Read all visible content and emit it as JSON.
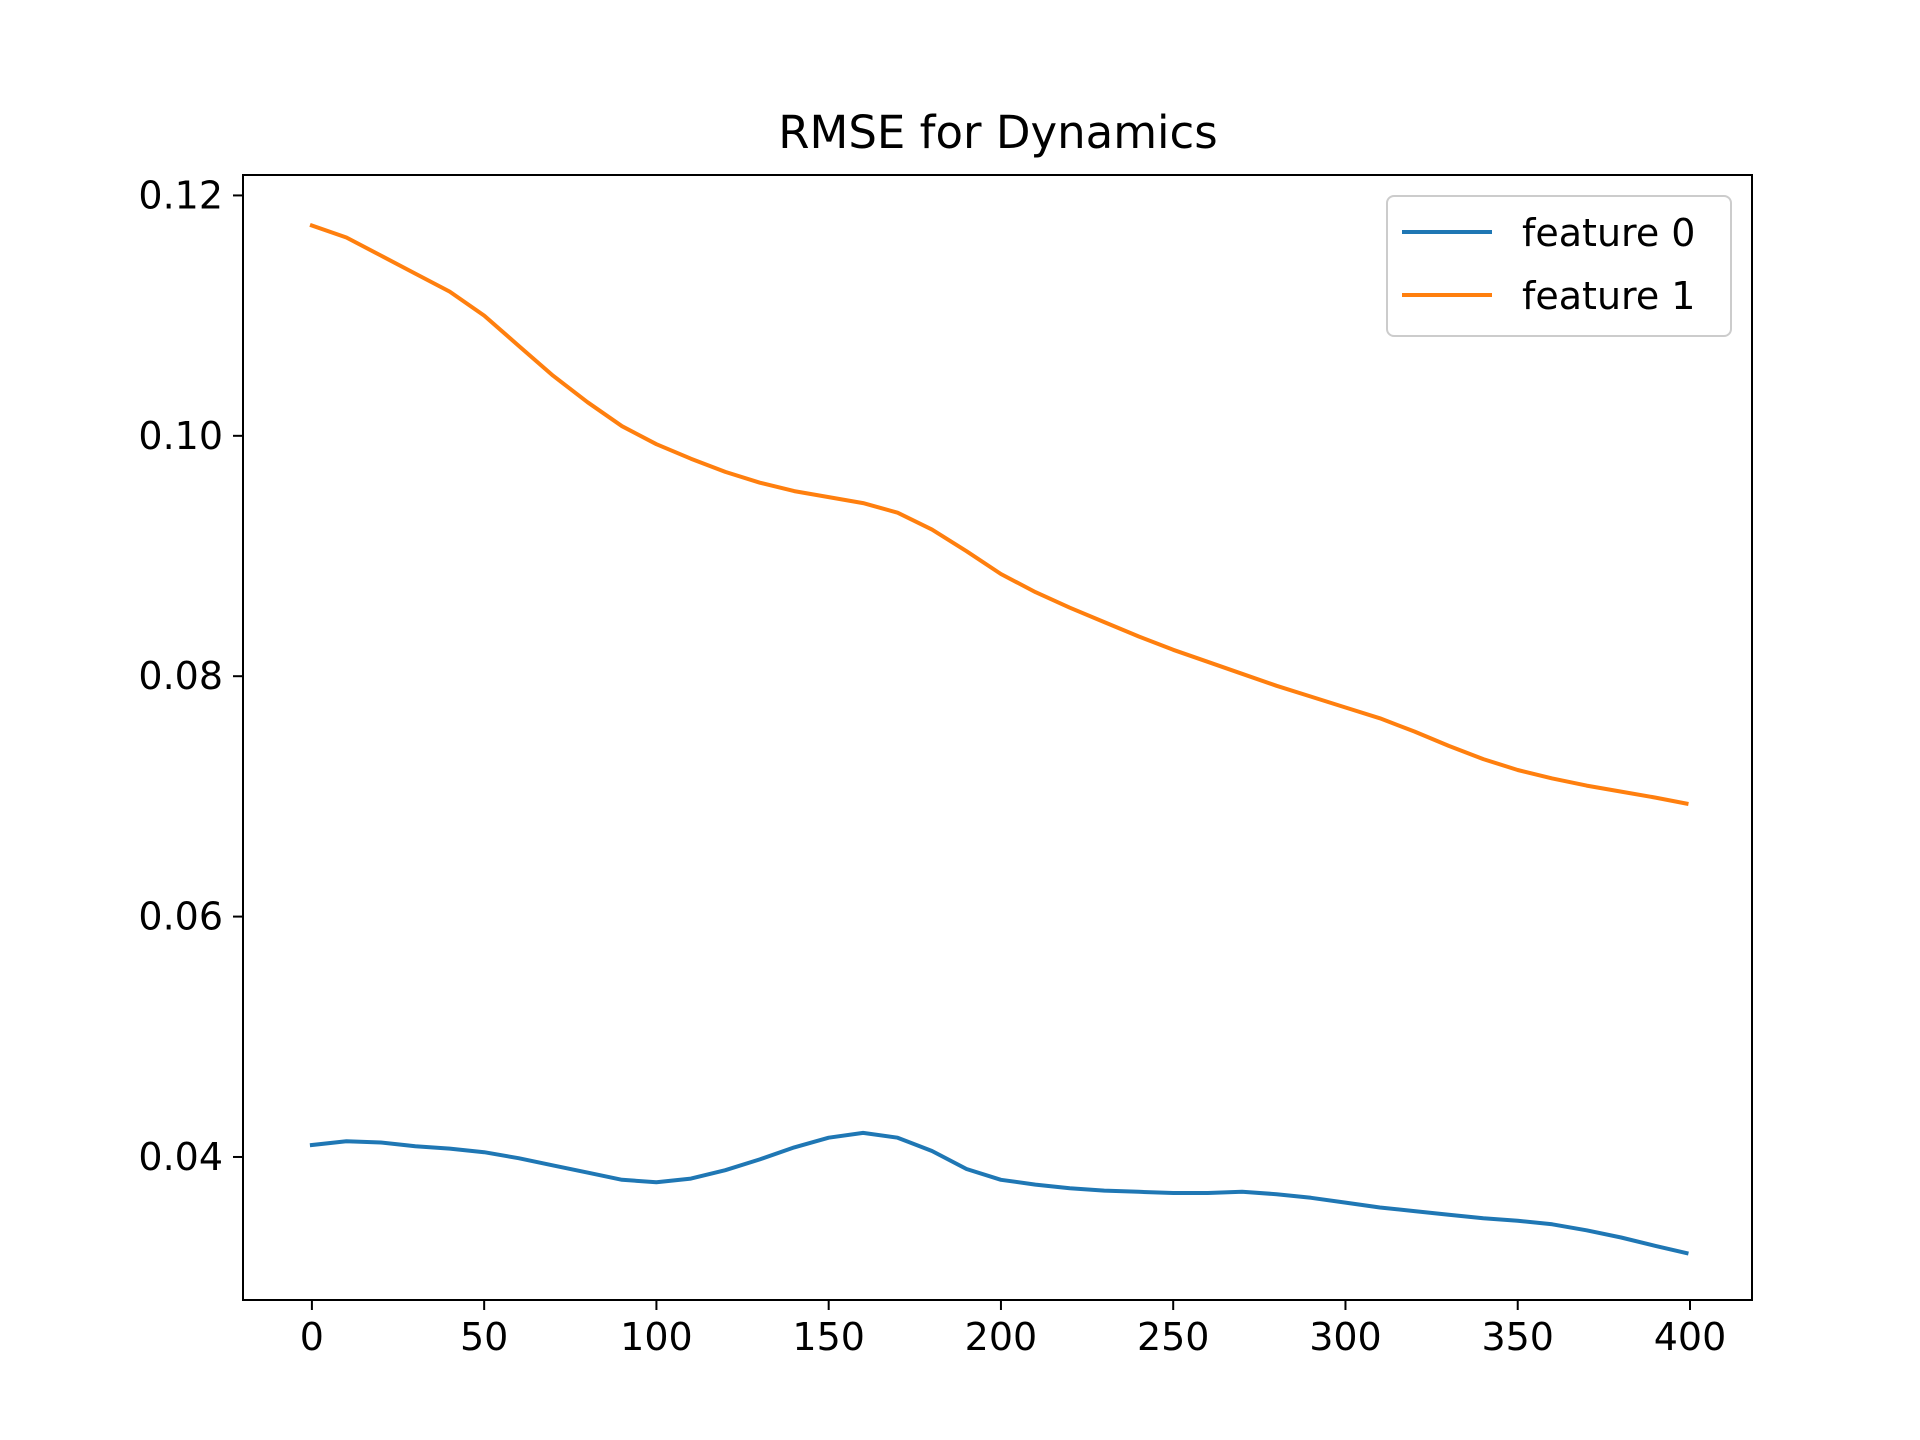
{
  "chart_data": {
    "type": "line",
    "title": "RMSE for Dynamics",
    "xlabel": "",
    "ylabel": "",
    "xlim": [
      -20,
      418
    ],
    "ylim": [
      0.0281,
      0.1217
    ],
    "xticks": [
      0,
      50,
      100,
      150,
      200,
      250,
      300,
      350,
      400
    ],
    "xtick_labels": [
      "0",
      "50",
      "100",
      "150",
      "200",
      "250",
      "300",
      "350",
      "400"
    ],
    "yticks": [
      0.04,
      0.06,
      0.08,
      0.1,
      0.12
    ],
    "ytick_labels": [
      "0.04",
      "0.06",
      "0.08",
      "0.10",
      "0.12"
    ],
    "grid": false,
    "legend_position": "top-right",
    "series": [
      {
        "name": "feature 0",
        "color": "#1f77b4",
        "x": [
          0,
          10,
          20,
          30,
          40,
          50,
          60,
          70,
          80,
          90,
          100,
          110,
          120,
          130,
          140,
          150,
          160,
          170,
          180,
          190,
          200,
          210,
          220,
          230,
          240,
          250,
          260,
          270,
          280,
          290,
          300,
          310,
          320,
          330,
          340,
          350,
          360,
          370,
          380,
          390,
          399
        ],
        "y": [
          0.041,
          0.0413,
          0.0412,
          0.0409,
          0.0407,
          0.0404,
          0.0399,
          0.0393,
          0.0387,
          0.0381,
          0.0379,
          0.0382,
          0.0389,
          0.0398,
          0.0408,
          0.0416,
          0.042,
          0.0416,
          0.0405,
          0.039,
          0.0381,
          0.0377,
          0.0374,
          0.0372,
          0.0371,
          0.037,
          0.037,
          0.0371,
          0.0369,
          0.0366,
          0.0362,
          0.0358,
          0.0355,
          0.0352,
          0.0349,
          0.0347,
          0.0344,
          0.0339,
          0.0333,
          0.0326,
          0.032
        ]
      },
      {
        "name": "feature 1",
        "color": "#ff7f0e",
        "x": [
          0,
          10,
          20,
          30,
          40,
          50,
          60,
          70,
          80,
          90,
          100,
          110,
          120,
          130,
          140,
          150,
          160,
          170,
          180,
          190,
          200,
          210,
          220,
          230,
          240,
          250,
          260,
          270,
          280,
          290,
          300,
          310,
          320,
          330,
          340,
          350,
          360,
          370,
          380,
          390,
          399
        ],
        "y": [
          0.1175,
          0.1165,
          0.115,
          0.1135,
          0.112,
          0.11,
          0.1075,
          0.105,
          0.1028,
          0.1008,
          0.0993,
          0.0981,
          0.097,
          0.0961,
          0.0954,
          0.0949,
          0.0944,
          0.0936,
          0.0922,
          0.0904,
          0.0885,
          0.087,
          0.0857,
          0.0845,
          0.0833,
          0.0822,
          0.0812,
          0.0802,
          0.0792,
          0.0783,
          0.0774,
          0.0765,
          0.0754,
          0.0742,
          0.0731,
          0.0722,
          0.0715,
          0.0709,
          0.0704,
          0.0699,
          0.0694
        ]
      }
    ]
  }
}
